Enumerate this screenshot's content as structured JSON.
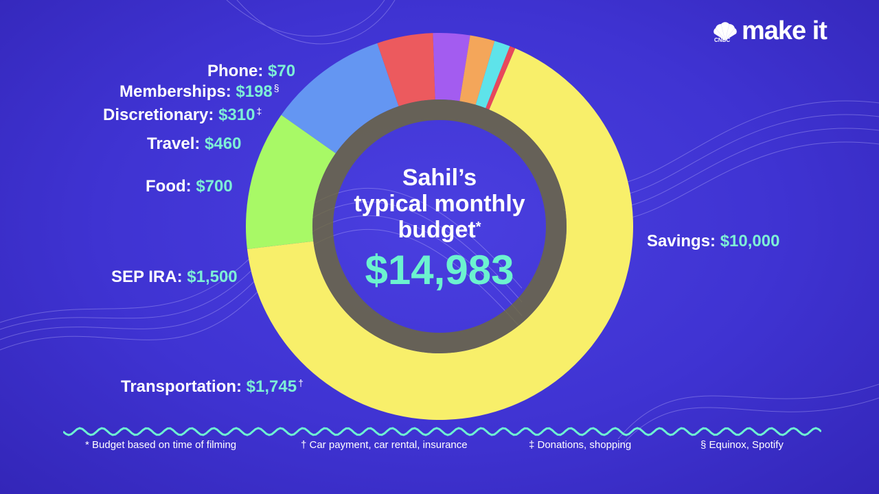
{
  "brand": {
    "logo_text": "make it",
    "logo_sub": "CNBC"
  },
  "center": {
    "title_line1": "Sahil’s",
    "title_line2": "typical monthly",
    "title_line3": "budget",
    "title_mark": "*",
    "total": "$14,983"
  },
  "chart_data": {
    "type": "pie",
    "style": "donut",
    "total": 14983,
    "currency": "USD",
    "start_angle_deg": 23,
    "slices": [
      {
        "name": "Savings",
        "value": 10000,
        "label": "$10,000",
        "mark": "",
        "color": "#f8ef6a"
      },
      {
        "name": "Transportation",
        "value": 1745,
        "label": "$1,745",
        "mark": "†",
        "color": "#a8f966"
      },
      {
        "name": "SEP IRA",
        "value": 1500,
        "label": "$1,500",
        "mark": "",
        "color": "#6496f2"
      },
      {
        "name": "Food",
        "value": 700,
        "label": "$700",
        "mark": "",
        "color": "#ec5a5e"
      },
      {
        "name": "Travel",
        "value": 460,
        "label": "$460",
        "mark": "",
        "color": "#a35cf0"
      },
      {
        "name": "Discretionary",
        "value": 310,
        "label": "$310",
        "mark": "‡",
        "color": "#f4a65a"
      },
      {
        "name": "Memberships",
        "value": 198,
        "label": "$198",
        "mark": "§",
        "color": "#5ee3ea"
      },
      {
        "name": "Phone",
        "value": 70,
        "label": "$70",
        "mark": "",
        "color": "#e8475b"
      }
    ]
  },
  "footnotes": [
    "* Budget based on time of filming",
    "† Car payment, car rental, insurance",
    "‡ Donations, shopping",
    "§ Equinox, Spotify"
  ]
}
